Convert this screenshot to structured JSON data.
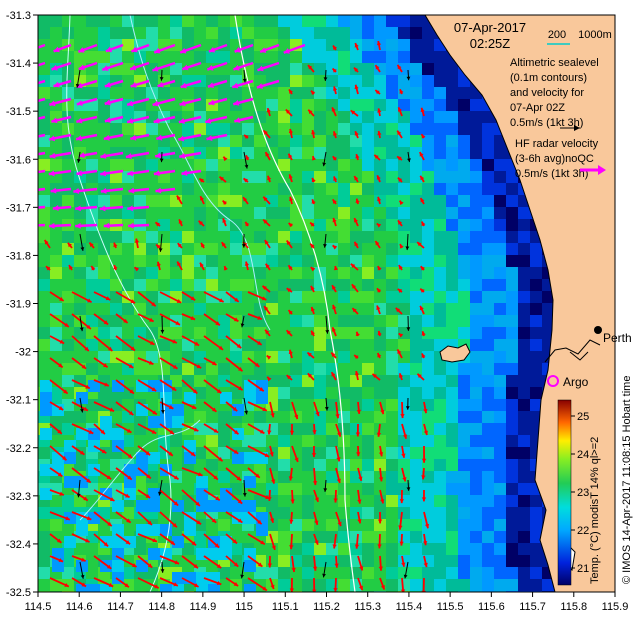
{
  "header": {
    "date": "07-Apr-2017",
    "time": "02:25Z",
    "scale_label": "200",
    "scale_unit": "1000m"
  },
  "legend": {
    "altimetry_lines": [
      "Altimetric sealevel",
      "(0.1m contours)",
      "and velocity for",
      "07-Apr 02Z",
      "0.5m/s (1kt 3h)"
    ],
    "hf_lines": [
      "HF radar velocity",
      "(3-6h avg)noQC",
      "0.5m/s (1kt 3h)"
    ]
  },
  "places": {
    "city": "Perth",
    "float": "Argo"
  },
  "colorbar": {
    "label": "Temp. (°C) modisT 14% ql>=2",
    "ticks": [
      "21",
      "22",
      "23",
      "24",
      "25"
    ]
  },
  "credit": "© IMOS 14-Apr-2017 11:08:15 Hobart time",
  "axes": {
    "x_ticks": [
      "114.5",
      "114.6",
      "114.7",
      "114.8",
      "114.9",
      "115",
      "115.1",
      "115.2",
      "115.3",
      "115.4",
      "115.5",
      "115.6",
      "115.7",
      "115.8",
      "115.9"
    ],
    "y_ticks": [
      "-31.3",
      "-31.4",
      "-31.5",
      "-31.6",
      "-31.7",
      "-31.8",
      "-31.9",
      "-32",
      "-32.1",
      "-32.2",
      "-32.3",
      "-32.4",
      "-32.5"
    ]
  },
  "colors": {
    "land": "#f9c89b",
    "hf_arrow": "#ff00ff",
    "alt_arrow": "#000000",
    "obs_arrow": "#ff0000",
    "scale_line": "#00cccc"
  }
}
